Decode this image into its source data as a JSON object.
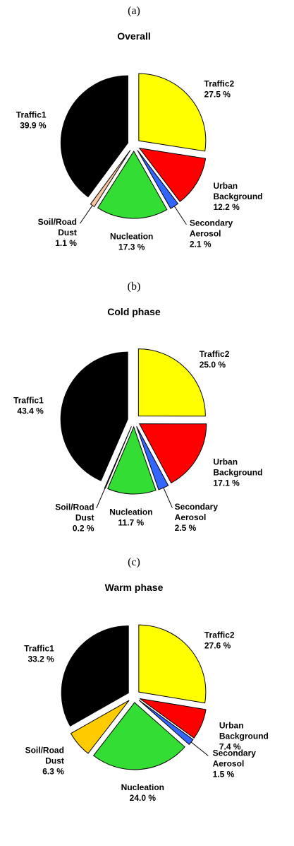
{
  "chart_data": [
    {
      "type": "pie",
      "label": "(a)",
      "title": "Overall",
      "categories": [
        "Traffic2",
        "Urban Background",
        "Secondary Aerosol",
        "Nucleation",
        "Soil/Road Dust",
        "Traffic1"
      ],
      "values": [
        27.5,
        12.2,
        2.1,
        17.3,
        1.1,
        39.9
      ],
      "value_labels": [
        "27.5 %",
        "12.2 %",
        "2.1 %",
        "17.3 %",
        "1.1 %",
        "39.9 %"
      ],
      "colors": [
        "#ffff00",
        "#ff0000",
        "#3366ff",
        "#33dd33",
        "#f6c6a0",
        "#000000"
      ]
    },
    {
      "type": "pie",
      "label": "(b)",
      "title": "Cold phase",
      "categories": [
        "Traffic2",
        "Urban Background",
        "Secondary Aerosol",
        "Nucleation",
        "Soil/Road Dust",
        "Traffic1"
      ],
      "values": [
        25.0,
        17.1,
        2.5,
        11.7,
        0.2,
        43.4
      ],
      "value_labels": [
        "25.0 %",
        "17.1 %",
        "2.5 %",
        "11.7 %",
        "0.2 %",
        "43.4 %"
      ],
      "colors": [
        "#ffff00",
        "#ff0000",
        "#3366ff",
        "#33dd33",
        "#f6c6a0",
        "#000000"
      ]
    },
    {
      "type": "pie",
      "label": "(c)",
      "title": "Warm phase",
      "categories": [
        "Traffic2",
        "Urban Background",
        "Secondary Aerosol",
        "Nucleation",
        "Soil/Road Dust",
        "Traffic1"
      ],
      "values": [
        27.6,
        7.4,
        1.5,
        24.0,
        6.3,
        33.2
      ],
      "value_labels": [
        "27.6 %",
        "7.4 %",
        "1.5 %",
        "24.0 %",
        "6.3 %",
        "33.2 %"
      ],
      "colors": [
        "#ffff00",
        "#ff0000",
        "#3366ff",
        "#33dd33",
        "#ffcc00",
        "#000000"
      ]
    }
  ]
}
